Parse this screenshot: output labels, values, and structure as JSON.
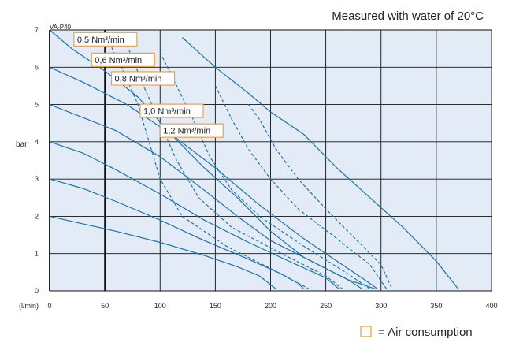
{
  "chart_data": {
    "type": "line",
    "title": "Measured with water of 20°C",
    "model": "VA-P40",
    "ylabel": "bar",
    "xlabel": "(l/min)",
    "xlim": [
      0,
      400
    ],
    "ylim": [
      0,
      7
    ],
    "xticks": [
      0,
      50,
      100,
      150,
      200,
      250,
      300,
      350,
      400
    ],
    "yticks": [
      0,
      1,
      2,
      3,
      4,
      5,
      6,
      7
    ],
    "grid": true,
    "colors": {
      "line": "#1d74a8",
      "plot_bg": "#e3ecf6",
      "grid": "#111111",
      "label_border": "#e8a24a"
    },
    "series": [
      {
        "style": "solid",
        "points": [
          [
            0,
            7
          ],
          [
            20,
            6.5
          ],
          [
            50,
            5.9
          ],
          [
            80,
            5.2
          ],
          [
            110,
            4.2
          ],
          [
            140,
            3.3
          ],
          [
            170,
            2.5
          ],
          [
            200,
            1.6
          ],
          [
            230,
            0.9
          ],
          [
            270,
            0.3
          ],
          [
            295,
            0.05
          ]
        ]
      },
      {
        "style": "solid",
        "points": [
          [
            0,
            6
          ],
          [
            30,
            5.6
          ],
          [
            70,
            5.0
          ],
          [
            110,
            4.2
          ],
          [
            150,
            3.3
          ],
          [
            190,
            2.3
          ],
          [
            230,
            1.4
          ],
          [
            265,
            0.7
          ],
          [
            285,
            0.3
          ],
          [
            297,
            0.05
          ]
        ]
      },
      {
        "style": "solid",
        "points": [
          [
            0,
            5
          ],
          [
            30,
            4.65
          ],
          [
            60,
            4.3
          ],
          [
            100,
            3.6
          ],
          [
            140,
            2.7
          ],
          [
            170,
            2.0
          ],
          [
            200,
            1.35
          ],
          [
            240,
            0.75
          ],
          [
            270,
            0.3
          ],
          [
            283,
            0.05
          ]
        ]
      },
      {
        "style": "solid",
        "points": [
          [
            0,
            4
          ],
          [
            30,
            3.7
          ],
          [
            60,
            3.25
          ],
          [
            100,
            2.6
          ],
          [
            140,
            1.9
          ],
          [
            180,
            1.3
          ],
          [
            220,
            0.75
          ],
          [
            250,
            0.35
          ],
          [
            262,
            0.05
          ]
        ]
      },
      {
        "style": "solid",
        "points": [
          [
            0,
            3
          ],
          [
            30,
            2.75
          ],
          [
            60,
            2.4
          ],
          [
            100,
            1.9
          ],
          [
            140,
            1.35
          ],
          [
            180,
            0.85
          ],
          [
            210,
            0.45
          ],
          [
            225,
            0.2
          ],
          [
            230,
            0.05
          ]
        ]
      },
      {
        "style": "solid",
        "points": [
          [
            0,
            2
          ],
          [
            30,
            1.8
          ],
          [
            60,
            1.6
          ],
          [
            100,
            1.3
          ],
          [
            140,
            0.95
          ],
          [
            170,
            0.65
          ],
          [
            190,
            0.4
          ],
          [
            205,
            0.05
          ]
        ]
      },
      {
        "style": "solid",
        "points": [
          [
            120,
            6.8
          ],
          [
            150,
            6.0
          ],
          [
            180,
            5.3
          ],
          [
            200,
            4.8
          ],
          [
            230,
            4.2
          ],
          [
            260,
            3.3
          ],
          [
            290,
            2.5
          ],
          [
            320,
            1.7
          ],
          [
            350,
            0.8
          ],
          [
            370,
            0.05
          ]
        ]
      },
      {
        "style": "dashed",
        "points": [
          [
            50,
            6.9
          ],
          [
            65,
            6.0
          ],
          [
            80,
            5.0
          ],
          [
            90,
            4.0
          ],
          [
            100,
            3.0
          ],
          [
            120,
            2.0
          ],
          [
            160,
            1.2
          ],
          [
            200,
            0.6
          ],
          [
            235,
            0.05
          ]
        ]
      },
      {
        "style": "dashed",
        "points": [
          [
            70,
            6.6
          ],
          [
            85,
            5.5
          ],
          [
            100,
            4.5
          ],
          [
            115,
            3.5
          ],
          [
            135,
            2.5
          ],
          [
            165,
            1.7
          ],
          [
            210,
            1.0
          ],
          [
            250,
            0.4
          ],
          [
            265,
            0.05
          ]
        ]
      },
      {
        "style": "dashed",
        "points": [
          [
            100,
            6.4
          ],
          [
            115,
            5.5
          ],
          [
            130,
            4.6
          ],
          [
            145,
            3.6
          ],
          [
            165,
            2.7
          ],
          [
            190,
            2.0
          ],
          [
            230,
            1.2
          ],
          [
            268,
            0.5
          ],
          [
            290,
            0.05
          ]
        ]
      },
      {
        "style": "dashed",
        "points": [
          [
            150,
            5.5
          ],
          [
            165,
            4.6
          ],
          [
            180,
            3.8
          ],
          [
            200,
            3.0
          ],
          [
            225,
            2.2
          ],
          [
            260,
            1.4
          ],
          [
            290,
            0.7
          ],
          [
            305,
            0.05
          ]
        ]
      },
      {
        "style": "dashed",
        "points": [
          [
            180,
            5.0
          ],
          [
            190,
            4.6
          ],
          [
            205,
            3.8
          ],
          [
            225,
            3.0
          ],
          [
            250,
            2.2
          ],
          [
            280,
            1.3
          ],
          [
            300,
            0.7
          ],
          [
            310,
            0.05
          ]
        ]
      }
    ],
    "air_labels": [
      {
        "text": "0,5 Nm³/min",
        "x": 22,
        "y": 6.75
      },
      {
        "text": "0,6 Nm³/min",
        "x": 38,
        "y": 6.2
      },
      {
        "text": "0,8 Nm³/min",
        "x": 56,
        "y": 5.7
      },
      {
        "text": "1,0 Nm³/min",
        "x": 82,
        "y": 4.83
      },
      {
        "text": "1,2 Nm³/min",
        "x": 100,
        "y": 4.3
      }
    ],
    "legend": {
      "text": "= Air consumption",
      "placement": "bottom-right"
    }
  }
}
